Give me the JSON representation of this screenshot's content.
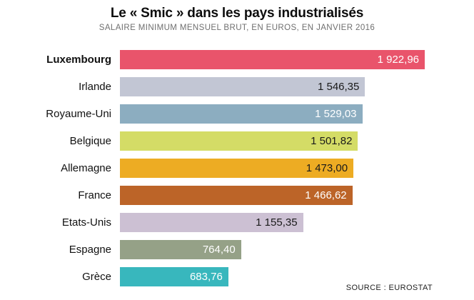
{
  "header": {
    "title": "Le « Smic » dans les pays industrialisés",
    "subtitle": "SALAIRE MINIMUM MENSUEL BRUT, EN EUROS, EN JANVIER 2016"
  },
  "footer": {
    "source": "SOURCE : EUROSTAT"
  },
  "chart_data": {
    "type": "bar",
    "orientation": "horizontal",
    "title": "Le « Smic » dans les pays industrialisés",
    "subtitle": "SALAIRE MINIMUM MENSUEL BRUT, EN EUROS, EN JANVIER 2016",
    "source": "SOURCE : EUROSTAT",
    "unit": "euros",
    "xlim": [
      0,
      1922.96
    ],
    "grid": false,
    "legend": false,
    "categories": [
      "Luxembourg",
      "Irlande",
      "Royaume-Uni",
      "Belgique",
      "Allemagne",
      "France",
      "Etats-Unis",
      "Espagne",
      "Grèce"
    ],
    "values": [
      1922.96,
      1546.35,
      1529.03,
      1501.82,
      1473.0,
      1466.62,
      1155.35,
      764.4,
      683.76
    ],
    "bars": [
      {
        "label": "Luxembourg",
        "value": 1922.96,
        "value_label": "1 922,96",
        "color": "#e9546b",
        "value_text_color": "#ffffff",
        "label_bold": true
      },
      {
        "label": "Irlande",
        "value": 1546.35,
        "value_label": "1 546,35",
        "color": "#c2c6d4",
        "value_text_color": "#1a1a1a",
        "label_bold": false
      },
      {
        "label": "Royaume-Uni",
        "value": 1529.03,
        "value_label": "1 529,03",
        "color": "#8cadc0",
        "value_text_color": "#ffffff",
        "label_bold": false
      },
      {
        "label": "Belgique",
        "value": 1501.82,
        "value_label": "1 501,82",
        "color": "#d4dc66",
        "value_text_color": "#1a1a1a",
        "label_bold": false
      },
      {
        "label": "Allemagne",
        "value": 1473.0,
        "value_label": "1 473,00",
        "color": "#edac23",
        "value_text_color": "#1a1a1a",
        "label_bold": false
      },
      {
        "label": "France",
        "value": 1466.62,
        "value_label": "1 466,62",
        "color": "#bc6428",
        "value_text_color": "#ffffff",
        "label_bold": false
      },
      {
        "label": "Etats-Unis",
        "value": 1155.35,
        "value_label": "1 155,35",
        "color": "#ccc0d3",
        "value_text_color": "#1a1a1a",
        "label_bold": false
      },
      {
        "label": "Espagne",
        "value": 764.4,
        "value_label": "764,40",
        "color": "#95a187",
        "value_text_color": "#ffffff",
        "label_bold": false
      },
      {
        "label": "Grèce",
        "value": 683.76,
        "value_label": "683,76",
        "color": "#38b7bd",
        "value_text_color": "#ffffff",
        "label_bold": false
      }
    ]
  }
}
